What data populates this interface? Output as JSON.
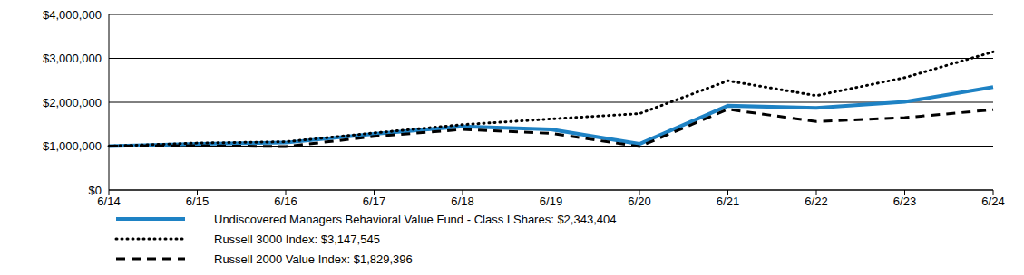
{
  "chart_data": {
    "type": "line",
    "categories": [
      "6/14",
      "6/15",
      "6/16",
      "6/17",
      "6/18",
      "6/19",
      "6/20",
      "6/21",
      "6/22",
      "6/23",
      "6/24"
    ],
    "series": [
      {
        "name": "Undiscovered Managers Behavioral Value Fund - Class I Shares: $2,343,404",
        "color": "#1e82c4",
        "line_style": "solid",
        "values": [
          1000000,
          1050000,
          1080000,
          1280000,
          1450000,
          1380000,
          1050000,
          1920000,
          1870000,
          2010000,
          2343404
        ]
      },
      {
        "name": "Russell 3000 Index: $3,147,545",
        "color": "#000000",
        "line_style": "dotted",
        "values": [
          1000000,
          1070000,
          1100000,
          1300000,
          1490000,
          1620000,
          1740000,
          2490000,
          2150000,
          2560000,
          3147545
        ]
      },
      {
        "name": "Russell 2000 Value Index: $1,829,396",
        "color": "#000000",
        "line_style": "dashed",
        "values": [
          1000000,
          1010000,
          990000,
          1220000,
          1380000,
          1290000,
          990000,
          1840000,
          1560000,
          1650000,
          1829396
        ]
      }
    ],
    "ylim": [
      0,
      4000000
    ],
    "yticks": [
      {
        "value": 0,
        "label": "$0"
      },
      {
        "value": 1000000,
        "label": "$1,000,000"
      },
      {
        "value": 2000000,
        "label": "$2,000,000"
      },
      {
        "value": 3000000,
        "label": "$3,000,000"
      },
      {
        "value": 4000000,
        "label": "$4,000,000"
      }
    ],
    "grid": true,
    "legend": "bottom"
  }
}
